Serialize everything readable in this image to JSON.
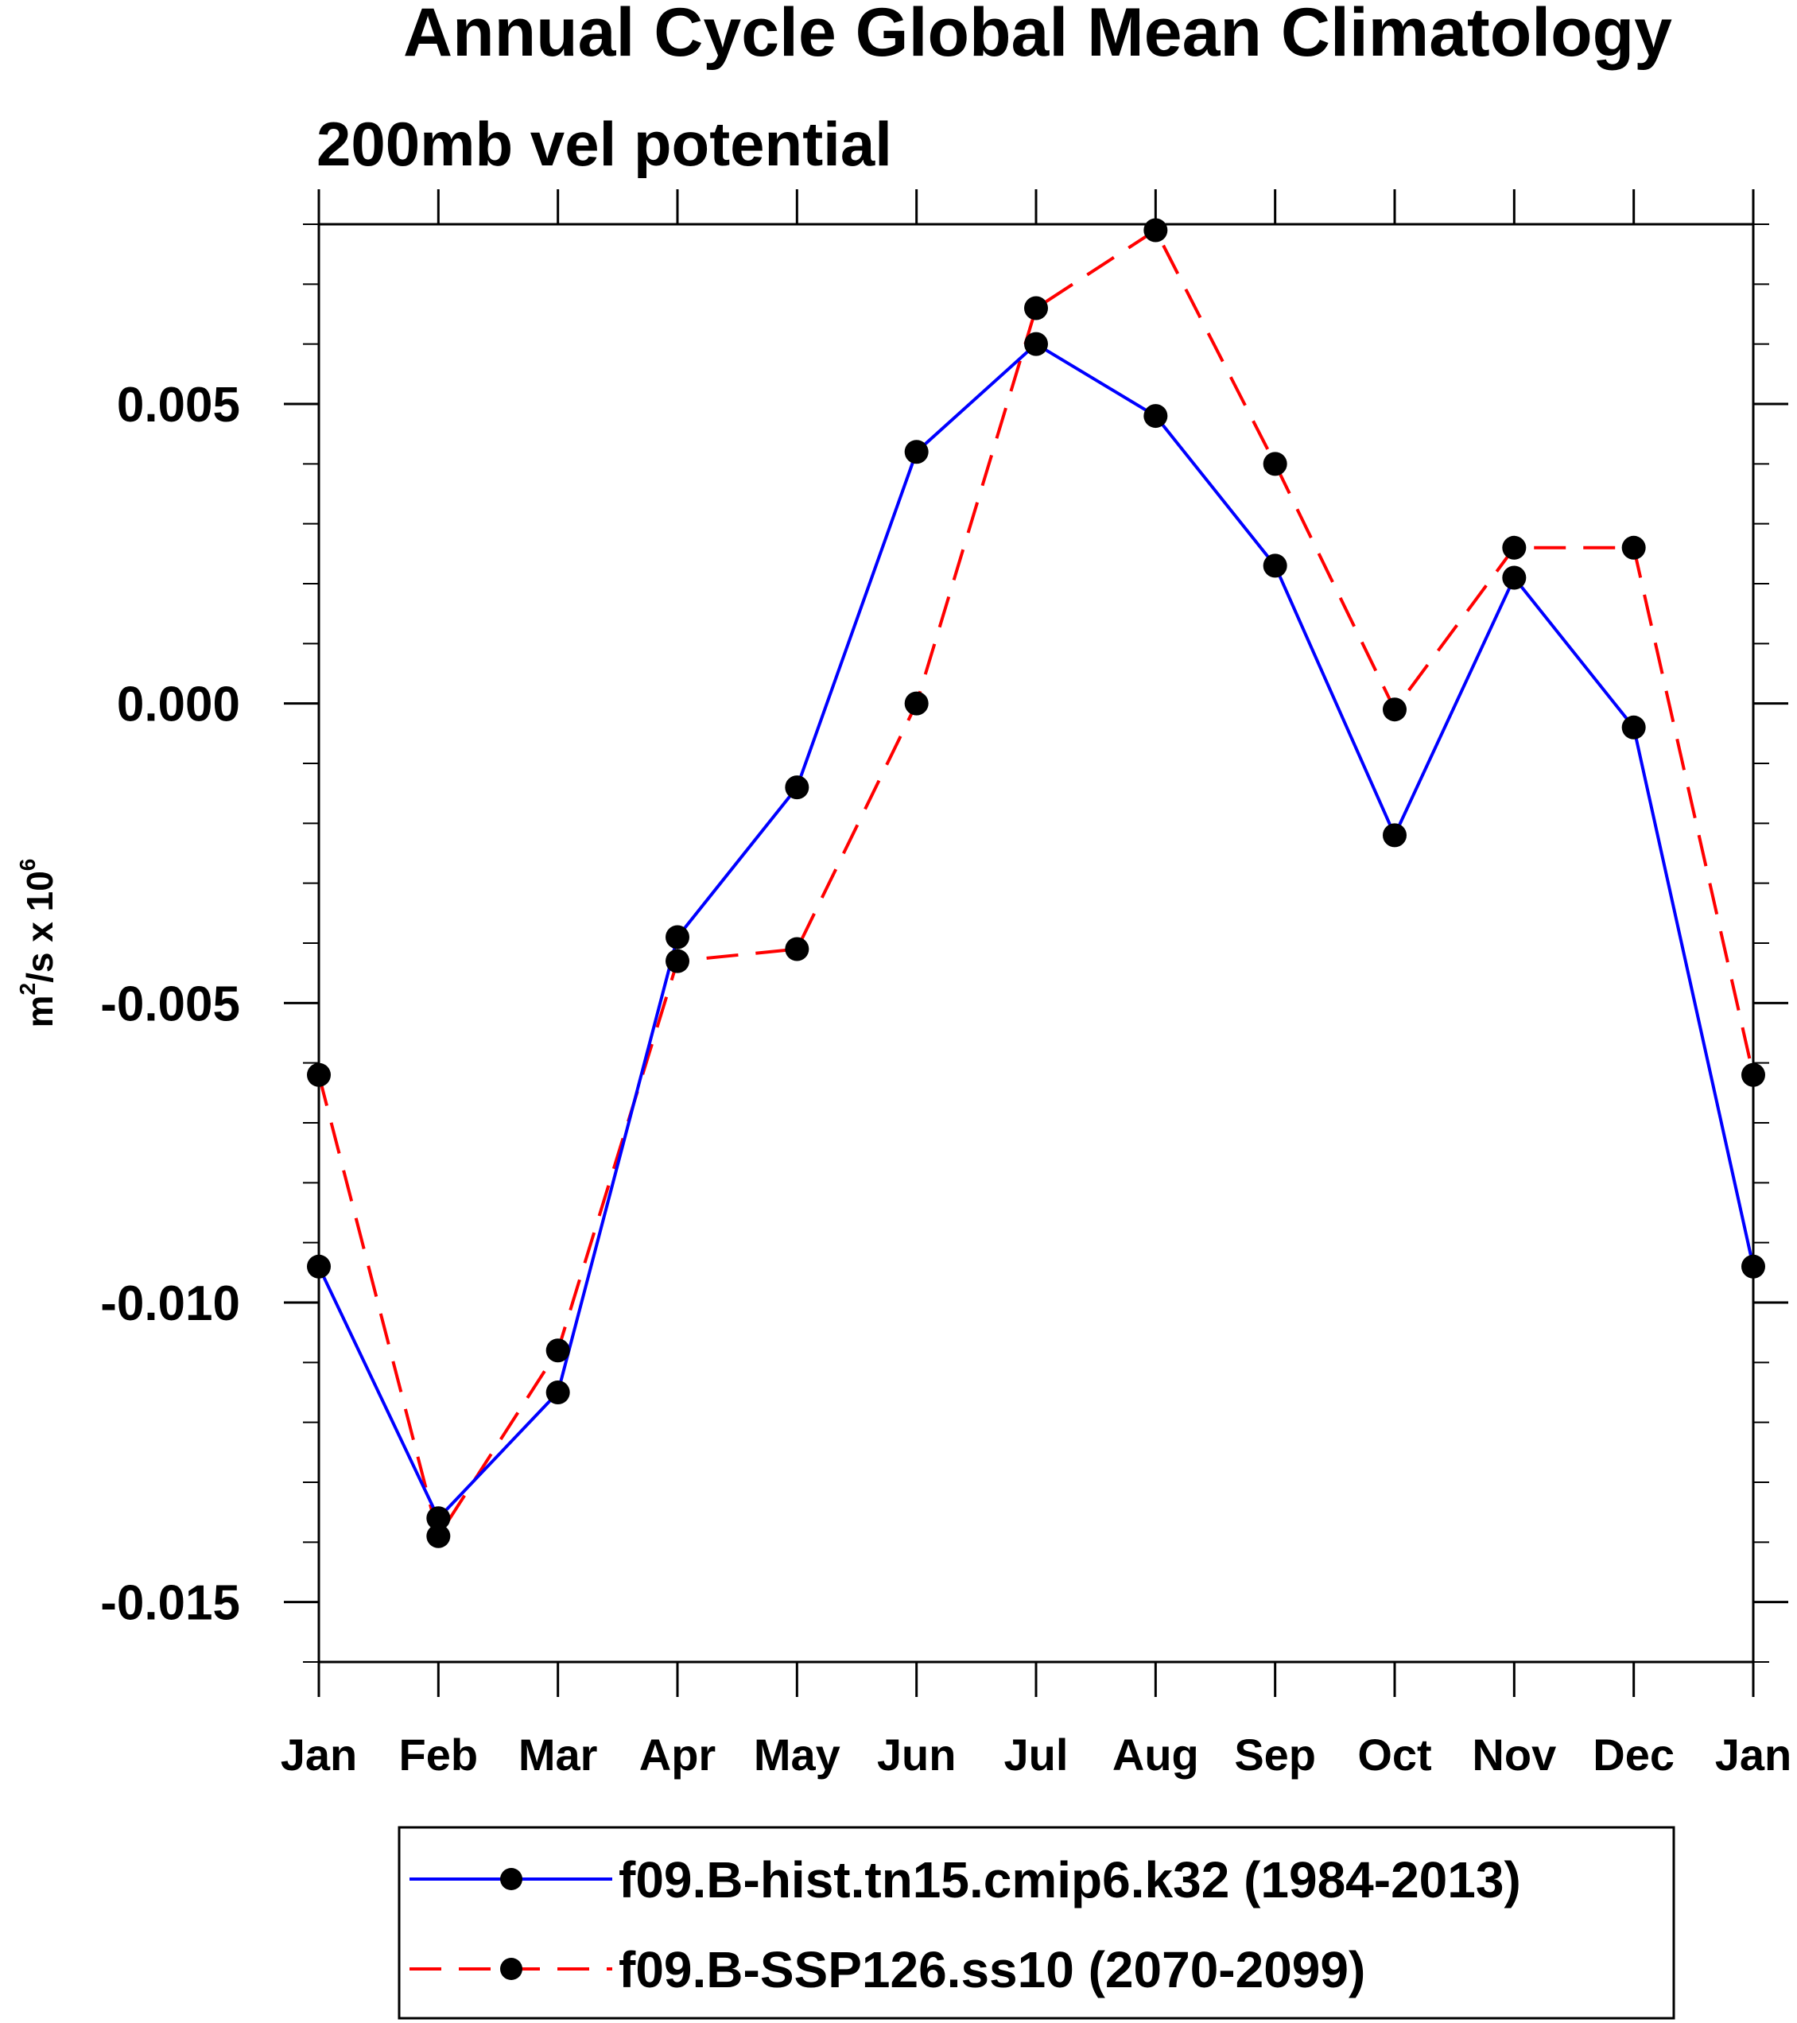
{
  "chart_data": {
    "type": "line",
    "title": "Annual Cycle Global Mean Climatology",
    "subtitle": "200mb vel potential",
    "ylabel": {
      "base": "m",
      "sup1": "2",
      "mid": "/s x 10",
      "sup2": "6"
    },
    "categories": [
      "Jan",
      "Feb",
      "Mar",
      "Apr",
      "May",
      "Jun",
      "Jul",
      "Aug",
      "Sep",
      "Oct",
      "Nov",
      "Dec",
      "Jan"
    ],
    "ylim": [
      -0.016,
      0.008
    ],
    "yticks": [
      {
        "value": 0.005,
        "label": "0.005"
      },
      {
        "value": 0.0,
        "label": "0.000"
      },
      {
        "value": -0.005,
        "label": "-0.005"
      },
      {
        "value": -0.01,
        "label": "-0.010"
      },
      {
        "value": -0.015,
        "label": "-0.015"
      }
    ],
    "yminor_step": 0.001,
    "series": [
      {
        "name": "f09.B-hist.tn15.cmip6.k32 (1984-2013)",
        "color": "#0000ff",
        "dash": "solid",
        "values": [
          -0.0094,
          -0.0136,
          -0.0115,
          -0.0039,
          -0.0014,
          0.0042,
          0.006,
          0.0048,
          0.0023,
          -0.0022,
          0.0021,
          -0.0004,
          -0.0094
        ]
      },
      {
        "name": "f09.B-SSP126.ss10 (2070-2099)",
        "color": "#ff0000",
        "dash": "dashed",
        "values": [
          -0.0062,
          -0.0139,
          -0.0108,
          -0.0043,
          -0.0041,
          0.0,
          0.0066,
          0.0079,
          0.004,
          -0.0001,
          0.0026,
          0.0026,
          -0.0062
        ]
      }
    ],
    "marker_color": "#000000",
    "legend": "bottom-center"
  }
}
